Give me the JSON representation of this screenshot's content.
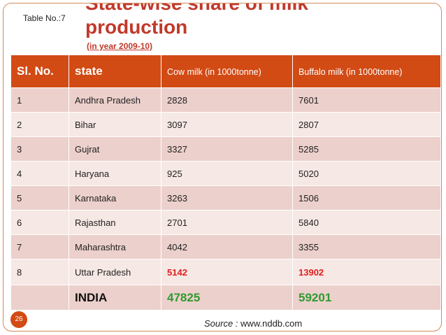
{
  "slide": {
    "table_no": "Table No.:7",
    "title_top": "State-wise share of milk",
    "title_main": "production",
    "subtitle": "(in year 2009-10)",
    "page_number": "26",
    "source_label": "Source :",
    "source_value": "www.nddb.com"
  },
  "table": {
    "headers": {
      "sl_no": "Sl. No.",
      "state": "state",
      "cow_milk": "Cow milk (in 1000tonne)",
      "buffalo_milk": "Buffalo milk (in 1000tonne)"
    },
    "rows": [
      {
        "sl": "1",
        "state": "Andhra Pradesh",
        "cow": "2828",
        "buffalo": "7601"
      },
      {
        "sl": "2",
        "state": "Bihar",
        "cow": "3097",
        "buffalo": "2807"
      },
      {
        "sl": "3",
        "state": "Gujrat",
        "cow": "3327",
        "buffalo": "5285"
      },
      {
        "sl": "4",
        "state": "Haryana",
        "cow": "925",
        "buffalo": "5020"
      },
      {
        "sl": "5",
        "state": "Karnataka",
        "cow": "3263",
        "buffalo": "1506"
      },
      {
        "sl": "6",
        "state": "Rajasthan",
        "cow": "2701",
        "buffalo": "5840"
      },
      {
        "sl": "7",
        "state": "Maharashtra",
        "cow": "4042",
        "buffalo": "3355"
      },
      {
        "sl": "8",
        "state": "Uttar Pradesh",
        "cow": "5142",
        "buffalo": "13902"
      }
    ],
    "total": {
      "sl": "",
      "state": "INDIA",
      "cow": "47825",
      "buffalo": "59201"
    }
  },
  "colors": {
    "accent": "#d24a14",
    "title": "#c0392b",
    "highlight_red": "#e02020",
    "total_green": "#2f9a2f",
    "row_dark": "#ecd0cc",
    "row_light": "#f6e8e4"
  }
}
